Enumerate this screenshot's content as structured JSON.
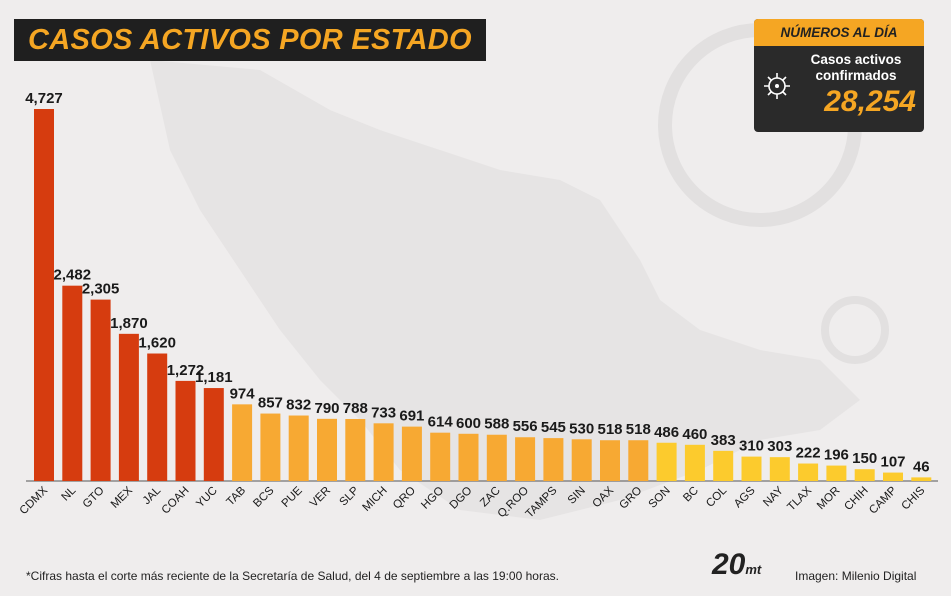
{
  "title": "CASOS ACTIVOS POR ESTADO",
  "summary": {
    "header": "NÚMEROS AL DÍA",
    "label": "Casos activos confirmados",
    "total": "28,254"
  },
  "footnote": "*Cifras hasta el corte más reciente de la Secretaría de Salud, del 4 de septiembre a las 19:00 horas.",
  "credit": "Imagen: Milenio Digital",
  "logo": {
    "main": "20",
    "suffix": "mt"
  },
  "colors": {
    "red": "#d63c0f",
    "orange": "#f7a933",
    "yellow": "#fccb2d",
    "title_bg": "#1f1f1f",
    "accent": "#f5a623"
  },
  "chart_data": {
    "type": "bar",
    "title": "CASOS ACTIVOS POR ESTADO",
    "xlabel": "",
    "ylabel": "",
    "ylim": [
      0,
      4727
    ],
    "grid": false,
    "categories": [
      "CDMX",
      "NL",
      "GTO",
      "MEX",
      "JAL",
      "COAH",
      "YUC",
      "TAB",
      "BCS",
      "PUE",
      "VER",
      "SLP",
      "MICH",
      "QRO",
      "HGO",
      "DGO",
      "ZAC",
      "Q.ROO",
      "TAMPS",
      "SIN",
      "OAX",
      "GRO",
      "SON",
      "BC",
      "COL",
      "AGS",
      "NAY",
      "TLAX",
      "MOR",
      "CHIH",
      "CAMP",
      "CHIS"
    ],
    "values": [
      4727,
      2482,
      2305,
      1870,
      1620,
      1272,
      1181,
      974,
      857,
      832,
      790,
      788,
      733,
      691,
      614,
      600,
      588,
      556,
      545,
      530,
      518,
      518,
      486,
      460,
      383,
      310,
      303,
      222,
      196,
      150,
      107,
      46
    ],
    "value_labels": [
      "4,727",
      "2,482",
      "2,305",
      "1,870",
      "1,620",
      "1,272",
      "1,181",
      "974",
      "857",
      "832",
      "790",
      "788",
      "733",
      "691",
      "614",
      "600",
      "588",
      "556",
      "545",
      "530",
      "518",
      "518",
      "486",
      "460",
      "383",
      "310",
      "303",
      "222",
      "196",
      "150",
      "107",
      "46"
    ],
    "bar_colors": [
      "red",
      "red",
      "red",
      "red",
      "red",
      "red",
      "red",
      "orange",
      "orange",
      "orange",
      "orange",
      "orange",
      "orange",
      "orange",
      "orange",
      "orange",
      "orange",
      "orange",
      "orange",
      "orange",
      "orange",
      "orange",
      "yellow",
      "yellow",
      "yellow",
      "yellow",
      "yellow",
      "yellow",
      "yellow",
      "yellow",
      "yellow",
      "yellow"
    ]
  }
}
